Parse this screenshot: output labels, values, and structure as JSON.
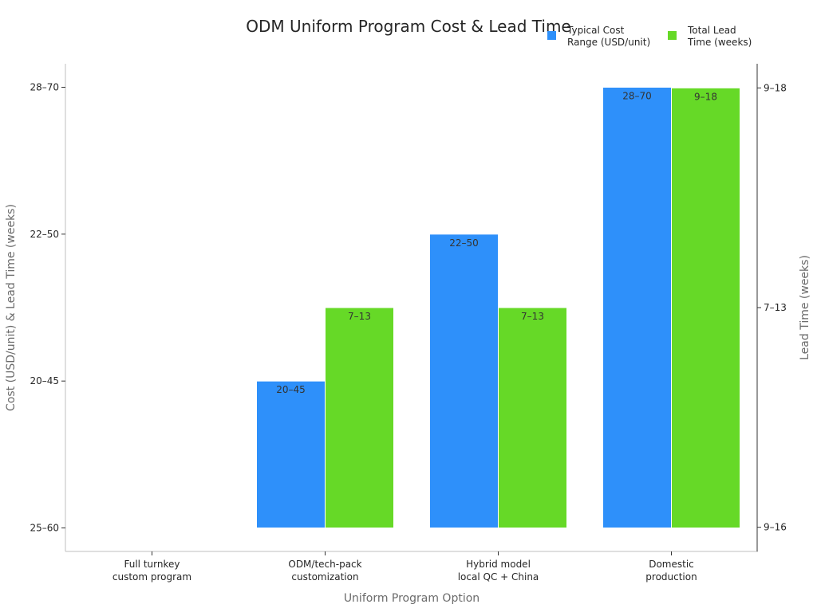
{
  "chart_data": {
    "type": "bar",
    "title": "ODM Uniform Program Cost & Lead Time",
    "xlabel": "Uniform Program Option",
    "ylabel": "Cost (USD/unit) & Lead Time (weeks)",
    "ylabel_right": "Lead Time (weeks)",
    "categories": [
      [
        "Full turnkey",
        "custom program"
      ],
      [
        "ODM/tech-pack",
        "customization"
      ],
      [
        "Hybrid model",
        "local QC + China"
      ],
      [
        "Domestic",
        "production"
      ]
    ],
    "y_left": {
      "ticks": [
        "25–60",
        "20–45",
        "22–50",
        "28–70"
      ],
      "lim": [
        -0.16,
        3.16
      ]
    },
    "y_right": {
      "ticks": [
        "9–16",
        "7–13",
        "9–18"
      ],
      "lim": [
        -0.11,
        2.11
      ]
    },
    "series": [
      {
        "name": "Typical Cost Range (USD/unit)",
        "legend_lines": [
          "Typical Cost",
          "Range (USD/unit)"
        ],
        "axis": "left",
        "color": "#2e90fa",
        "values": [
          0,
          1,
          2,
          3
        ],
        "labels": [
          "",
          "20–45",
          "22–50",
          "28–70"
        ]
      },
      {
        "name": "Total Lead Time (weeks)",
        "legend_lines": [
          "Total Lead",
          "Time (weeks)"
        ],
        "axis": "right",
        "color": "#66d927",
        "values": [
          0,
          1,
          1,
          2
        ],
        "labels": [
          "",
          "7–13",
          "7–13",
          "9–18"
        ]
      }
    ],
    "legend_position": "top-right",
    "grid": false
  }
}
